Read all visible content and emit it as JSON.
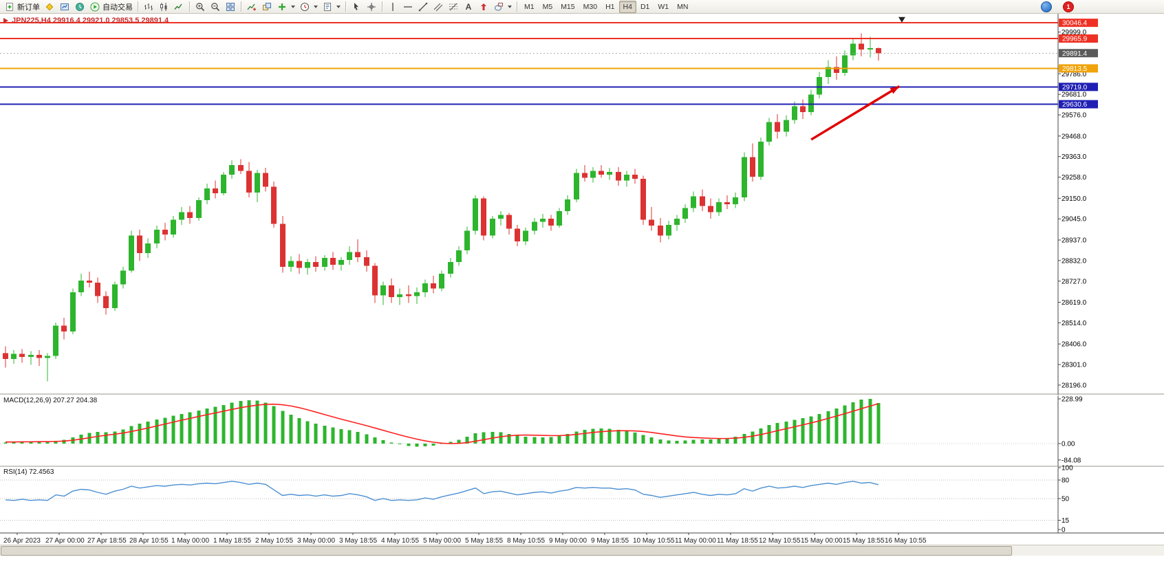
{
  "toolbar": {
    "new_order": "新订单",
    "auto_trading": "自动交易",
    "timeframes": [
      "M1",
      "M5",
      "M15",
      "M30",
      "H1",
      "H4",
      "D1",
      "W1",
      "MN"
    ],
    "active_timeframe": "H4",
    "notification_count": "1",
    "icons": [
      "new-order-icon",
      "metaeditor-icon",
      "charts-icon",
      "market-watch-icon",
      "auto-trading-icon",
      "bar-chart-icon",
      "candlestick-chart-icon",
      "line-chart-icon",
      "zoom-in-icon",
      "zoom-out-icon",
      "tile-windows-icon",
      "indicators-icon",
      "objects-icon",
      "add-indicator-icon",
      "periods-icon",
      "templates-icon",
      "cursor-icon",
      "crosshair-icon",
      "vertical-line-icon",
      "horizontal-line-icon",
      "trendline-icon",
      "channel-icon",
      "fibonacci-icon",
      "text-icon",
      "arrows-icon",
      "shapes-icon",
      "mql5-icon",
      "notification-icon"
    ]
  },
  "chart_data": [
    {
      "type": "candlestick",
      "symbol": "JPN225",
      "period": "H4",
      "title": "JPN225,H4 29916.4 29921.0 29853.5 29891.4",
      "current_bar": {
        "open": 29916.4,
        "high": 29921.0,
        "low": 29853.5,
        "close": 29891.4
      },
      "colors": {
        "bull": "#2db52d",
        "bear": "#dc3232"
      },
      "ylim": [
        28170,
        30090
      ],
      "y_axis_ticks": [
        29999.0,
        29786.0,
        29681.0,
        29576.0,
        29468.0,
        29363.0,
        29258.0,
        29150.0,
        29045.0,
        28937.0,
        28832.0,
        28727.0,
        28619.0,
        28514.0,
        28406.0,
        28301.0,
        28196.0
      ],
      "price_labels": [
        {
          "value": "30046.4",
          "price": 30046.4,
          "color": "#ee3124"
        },
        {
          "value": "29965.9",
          "price": 29965.9,
          "color": "#ee3124"
        },
        {
          "value": "29891.4",
          "price": 29891.4,
          "color": "#5a5a5a"
        },
        {
          "value": "29813.5",
          "price": 29813.5,
          "color": "#f0a30a"
        },
        {
          "value": "29719.0",
          "price": 29719.0,
          "color": "#1f1fb4"
        },
        {
          "value": "29630.6",
          "price": 29630.6,
          "color": "#1f1fb4"
        }
      ],
      "hlines": [
        {
          "price": 30046.4,
          "color": "#ee3124",
          "width": 2
        },
        {
          "price": 29965.9,
          "color": "#ee3124",
          "width": 2
        },
        {
          "price": 29891.4,
          "color": "#b0b0b0",
          "width": 1,
          "dash": "2,3"
        },
        {
          "price": 29813.5,
          "color": "#f0a30a",
          "width": 2
        },
        {
          "price": 29719.0,
          "color": "#1f1fb4",
          "width": 2
        },
        {
          "price": 29630.6,
          "color": "#1f1fb4",
          "width": 2
        }
      ],
      "x_labels": [
        "26 Apr 2023",
        "27 Apr 00:00",
        "27 Apr 18:55",
        "28 Apr 10:55",
        "1 May 00:00",
        "1 May 18:55",
        "2 May 10:55",
        "3 May 00:00",
        "3 May 18:55",
        "4 May 10:55",
        "5 May 00:00",
        "5 May 18:55",
        "8 May 10:55",
        "9 May 00:00",
        "9 May 18:55",
        "10 May 10:55",
        "11 May 00:00",
        "11 May 18:55",
        "12 May 10:55",
        "15 May 00:00",
        "15 May 18:55",
        "16 May 10:55"
      ],
      "annotations": {
        "arrow": {
          "from": {
            "bar": 96,
            "price": 29450
          },
          "to": {
            "bar": 106.5,
            "price": 29722
          },
          "color": "#e00000",
          "width": 3.5
        },
        "marker": {
          "bar": 106.8,
          "price": 30062,
          "shape": "triangle-down",
          "color": "#222222"
        }
      },
      "candles": [
        [
          28360,
          28395,
          28285,
          28330
        ],
        [
          28330,
          28375,
          28305,
          28355
        ],
        [
          28355,
          28380,
          28310,
          28340
        ],
        [
          28340,
          28370,
          28300,
          28350
        ],
        [
          28350,
          28375,
          28295,
          28335
        ],
        [
          28335,
          28360,
          28215,
          28345
        ],
        [
          28345,
          28515,
          28330,
          28500
        ],
        [
          28500,
          28540,
          28430,
          28470
        ],
        [
          28470,
          28690,
          28455,
          28670
        ],
        [
          28670,
          28765,
          28650,
          28730
        ],
        [
          28730,
          28775,
          28695,
          28720
        ],
        [
          28720,
          28745,
          28615,
          28650
        ],
        [
          28650,
          28675,
          28555,
          28590
        ],
        [
          28590,
          28725,
          28575,
          28710
        ],
        [
          28710,
          28800,
          28690,
          28780
        ],
        [
          28780,
          28985,
          28770,
          28960
        ],
        [
          28960,
          28990,
          28830,
          28870
        ],
        [
          28870,
          28945,
          28845,
          28920
        ],
        [
          28920,
          29010,
          28895,
          28990
        ],
        [
          28990,
          29025,
          28935,
          28965
        ],
        [
          28965,
          29060,
          28950,
          29040
        ],
        [
          29040,
          29105,
          29015,
          29080
        ],
        [
          29080,
          29110,
          29020,
          29050
        ],
        [
          29050,
          29155,
          29035,
          29140
        ],
        [
          29140,
          29225,
          29120,
          29200
        ],
        [
          29200,
          29240,
          29150,
          29175
        ],
        [
          29175,
          29285,
          29165,
          29270
        ],
        [
          29270,
          29345,
          29250,
          29320
        ],
        [
          29320,
          29350,
          29275,
          29290
        ],
        [
          29290,
          29335,
          29155,
          29180
        ],
        [
          29180,
          29295,
          29130,
          29280
        ],
        [
          29280,
          29305,
          29185,
          29210
        ],
        [
          29210,
          29235,
          29000,
          29020
        ],
        [
          29020,
          29060,
          28770,
          28800
        ],
        [
          28800,
          28855,
          28775,
          28830
        ],
        [
          28830,
          28865,
          28765,
          28795
        ],
        [
          28795,
          28840,
          28760,
          28825
        ],
        [
          28825,
          28855,
          28775,
          28800
        ],
        [
          28800,
          28860,
          28780,
          28845
        ],
        [
          28845,
          28875,
          28785,
          28810
        ],
        [
          28810,
          28850,
          28780,
          28835
        ],
        [
          28835,
          28905,
          28810,
          28875
        ],
        [
          28875,
          28940,
          28825,
          28850
        ],
        [
          28850,
          28885,
          28775,
          28805
        ],
        [
          28805,
          28820,
          28615,
          28655
        ],
        [
          28655,
          28725,
          28605,
          28705
        ],
        [
          28705,
          28740,
          28615,
          28645
        ],
        [
          28645,
          28690,
          28605,
          28660
        ],
        [
          28660,
          28705,
          28615,
          28650
        ],
        [
          28650,
          28695,
          28610,
          28670
        ],
        [
          28670,
          28735,
          28645,
          28715
        ],
        [
          28715,
          28755,
          28665,
          28690
        ],
        [
          28690,
          28780,
          28675,
          28765
        ],
        [
          28765,
          28845,
          28745,
          28825
        ],
        [
          28825,
          28905,
          28805,
          28885
        ],
        [
          28885,
          29005,
          28865,
          28985
        ],
        [
          28985,
          29165,
          28965,
          29150
        ],
        [
          29150,
          29160,
          28935,
          28960
        ],
        [
          28960,
          29060,
          28945,
          29045
        ],
        [
          29045,
          29085,
          29010,
          29065
        ],
        [
          29065,
          29075,
          28965,
          28995
        ],
        [
          28995,
          29015,
          28905,
          28930
        ],
        [
          28930,
          29000,
          28910,
          28985
        ],
        [
          28985,
          29050,
          28965,
          29030
        ],
        [
          29030,
          29070,
          29000,
          29045
        ],
        [
          29045,
          29065,
          28985,
          29010
        ],
        [
          29010,
          29100,
          29000,
          29085
        ],
        [
          29085,
          29165,
          29065,
          29145
        ],
        [
          29145,
          29300,
          29130,
          29280
        ],
        [
          29280,
          29320,
          29235,
          29255
        ],
        [
          29255,
          29310,
          29230,
          29290
        ],
        [
          29290,
          29320,
          29255,
          29270
        ],
        [
          29270,
          29305,
          29245,
          29285
        ],
        [
          29285,
          29310,
          29215,
          29240
        ],
        [
          29240,
          29290,
          29210,
          29270
        ],
        [
          29270,
          29300,
          29225,
          29250
        ],
        [
          29250,
          29265,
          29015,
          29040
        ],
        [
          29040,
          29105,
          28985,
          29010
        ],
        [
          29010,
          29050,
          28925,
          28960
        ],
        [
          28960,
          29035,
          28940,
          29015
        ],
        [
          29015,
          29065,
          28985,
          29045
        ],
        [
          29045,
          29120,
          29025,
          29100
        ],
        [
          29100,
          29185,
          29080,
          29160
        ],
        [
          29160,
          29195,
          29085,
          29110
        ],
        [
          29110,
          29150,
          29045,
          29080
        ],
        [
          29080,
          29150,
          29060,
          29130
        ],
        [
          29130,
          29165,
          29095,
          29120
        ],
        [
          29120,
          29180,
          29100,
          29155
        ],
        [
          29155,
          29385,
          29135,
          29360
        ],
        [
          29360,
          29430,
          29235,
          29260
        ],
        [
          29260,
          29460,
          29245,
          29440
        ],
        [
          29440,
          29560,
          29420,
          29540
        ],
        [
          29540,
          29580,
          29455,
          29490
        ],
        [
          29490,
          29575,
          29465,
          29550
        ],
        [
          29550,
          29645,
          29530,
          29620
        ],
        [
          29620,
          29655,
          29555,
          29590
        ],
        [
          29590,
          29705,
          29575,
          29680
        ],
        [
          29680,
          29795,
          29660,
          29770
        ],
        [
          29770,
          29855,
          29735,
          29820
        ],
        [
          29820,
          29875,
          29755,
          29790
        ],
        [
          29790,
          29905,
          29775,
          29880
        ],
        [
          29880,
          29965,
          29855,
          29940
        ],
        [
          29940,
          29992,
          29875,
          29910
        ],
        [
          29910,
          29975,
          29870,
          29916.4
        ],
        [
          29916.4,
          29921.0,
          29853.5,
          29891.4
        ]
      ]
    },
    {
      "type": "macd",
      "label": "MACD(12,26,9) 207.27 204.38",
      "params": "12,26,9",
      "values": {
        "main": 207.27,
        "signal": 204.38
      },
      "colors": {
        "histogram": "#2db52d",
        "signal": "#ff2020"
      },
      "axis": [
        228.99,
        0.0,
        -84.08
      ],
      "histogram": [
        6,
        8,
        9,
        10,
        10,
        9,
        14,
        20,
        32,
        45,
        55,
        60,
        58,
        62,
        72,
        90,
        102,
        112,
        124,
        132,
        142,
        152,
        160,
        170,
        180,
        188,
        198,
        210,
        218,
        222,
        220,
        210,
        192,
        168,
        148,
        130,
        115,
        102,
        92,
        82,
        74,
        68,
        60,
        48,
        32,
        18,
        6,
        -4,
        -12,
        -16,
        -14,
        -10,
        -2,
        8,
        20,
        36,
        52,
        58,
        60,
        58,
        50,
        42,
        36,
        34,
        32,
        34,
        40,
        50,
        62,
        70,
        75,
        77,
        75,
        70,
        64,
        56,
        44,
        32,
        22,
        16,
        14,
        16,
        20,
        22,
        22,
        24,
        28,
        36,
        50,
        62,
        78,
        95,
        105,
        112,
        122,
        130,
        140,
        152,
        165,
        180,
        195,
        212,
        225,
        229,
        207.27
      ],
      "signal": [
        8,
        8,
        9,
        9,
        10,
        10,
        11,
        13,
        17,
        23,
        30,
        37,
        43,
        48,
        54,
        62,
        71,
        80,
        90,
        100,
        110,
        120,
        129,
        139,
        148,
        157,
        166,
        175,
        184,
        191,
        197,
        201,
        202,
        199,
        193,
        184,
        173,
        161,
        149,
        137,
        125,
        114,
        103,
        92,
        80,
        68,
        56,
        44,
        33,
        23,
        14,
        7,
        2,
        0,
        1,
        5,
        12,
        20,
        28,
        35,
        40,
        43,
        44,
        43,
        42,
        41,
        41,
        43,
        47,
        52,
        57,
        61,
        64,
        66,
        66,
        65,
        62,
        57,
        51,
        45,
        39,
        34,
        31,
        29,
        27,
        26,
        26,
        28,
        32,
        38,
        46,
        56,
        66,
        76,
        86,
        96,
        106,
        117,
        129,
        141,
        153,
        166,
        179,
        192,
        204.38
      ]
    },
    {
      "type": "rsi",
      "label": "RSI(14) 72.4563",
      "period": 14,
      "value": 72.4563,
      "colors": {
        "line": "#4a8fd2",
        "levels": "#bdbdbd"
      },
      "axis": [
        100,
        80,
        50,
        15,
        0
      ],
      "levels": [
        80,
        50,
        15
      ],
      "values": [
        48,
        47,
        49,
        47,
        48,
        47,
        56,
        54,
        62,
        65,
        64,
        60,
        57,
        62,
        65,
        70,
        67,
        69,
        71,
        70,
        72,
        73,
        72,
        74,
        75,
        74,
        76,
        78,
        76,
        73,
        75,
        73,
        64,
        55,
        57,
        55,
        56,
        54,
        56,
        54,
        55,
        58,
        56,
        53,
        47,
        50,
        47,
        48,
        47,
        48,
        51,
        49,
        53,
        56,
        59,
        63,
        67,
        58,
        61,
        62,
        59,
        56,
        58,
        60,
        61,
        59,
        62,
        64,
        68,
        67,
        68,
        67,
        67,
        65,
        66,
        64,
        57,
        55,
        52,
        54,
        56,
        58,
        60,
        57,
        55,
        57,
        56,
        58,
        66,
        62,
        67,
        70,
        67,
        68,
        70,
        68,
        71,
        73,
        75,
        73,
        76,
        78,
        75,
        76,
        72.4563
      ]
    }
  ]
}
